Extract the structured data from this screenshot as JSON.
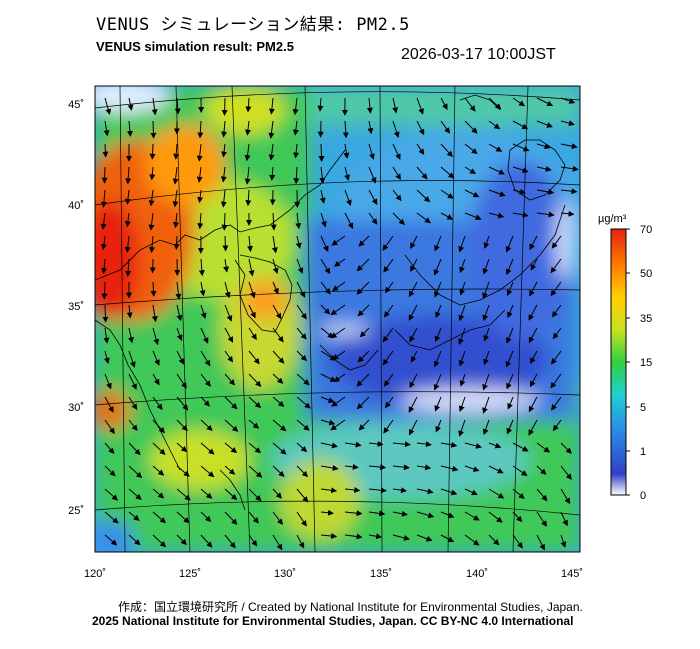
{
  "header": {
    "title_ja": "VENUS シミュレーション結果: PM2.5",
    "title_en": "VENUS simulation result: PM2.5",
    "timestamp": "2026-03-17 10:00JST"
  },
  "map": {
    "lon_labels": [
      "120˚",
      "125˚",
      "130˚",
      "135˚",
      "140˚",
      "145˚"
    ],
    "lat_labels": [
      "45˚",
      "40˚",
      "35˚",
      "30˚",
      "25˚"
    ],
    "lon_range": [
      120,
      145
    ],
    "lat_range": [
      23,
      46
    ]
  },
  "colorbar": {
    "unit": "µg/m³",
    "ticks": [
      "70",
      "50",
      "35",
      "15",
      "5",
      "1",
      "0"
    ],
    "colors": [
      "#ffffff",
      "#3040c8",
      "#2a8fe8",
      "#20d0d0",
      "#30d040",
      "#c8e020",
      "#ffd000",
      "#ff8000",
      "#e82010"
    ]
  },
  "footer": {
    "credit": "作成：国立環境研究所 / Created by National Institute for Environmental Studies, Japan.",
    "copyright": "2025 National Institute for Environmental Studies, Japan. CC BY-NC 4.0 International"
  }
}
